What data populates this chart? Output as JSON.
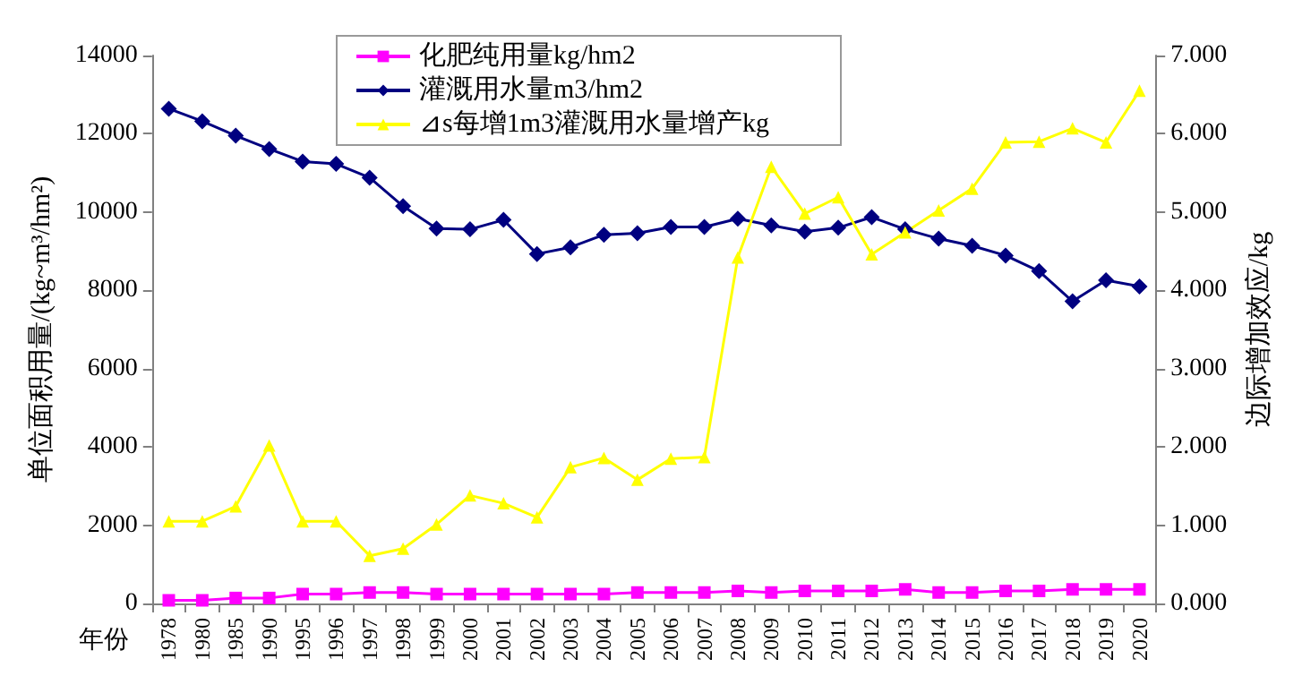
{
  "chart_data": {
    "type": "line",
    "categories": [
      "1978",
      "1980",
      "1985",
      "1990",
      "1995",
      "1996",
      "1997",
      "1998",
      "1999",
      "2000",
      "2001",
      "2002",
      "2003",
      "2004",
      "2005",
      "2006",
      "2007",
      "2008",
      "2009",
      "2010",
      "2011",
      "2012",
      "2013",
      "2014",
      "2015",
      "2016",
      "2017",
      "2018",
      "2019",
      "2020"
    ],
    "series": [
      {
        "name": "化肥纯用量kg/hm2",
        "color": "#ff00ff",
        "marker": "square",
        "values": [
          80,
          80,
          140,
          140,
          240,
          240,
          280,
          280,
          240,
          240,
          240,
          240,
          240,
          240,
          280,
          280,
          280,
          320,
          280,
          320,
          320,
          320,
          360,
          280,
          280,
          320,
          320,
          360,
          360,
          360
        ]
      },
      {
        "name": "灌溉用水量m3/hm2",
        "color": "#000080",
        "marker": "diamond",
        "values": [
          12640,
          12320,
          11950,
          11610,
          11290,
          11230,
          10880,
          10150,
          9580,
          9560,
          9800,
          8930,
          9100,
          9420,
          9460,
          9620,
          9620,
          9830,
          9660,
          9500,
          9600,
          9870,
          9560,
          9320,
          9140,
          8890,
          8490,
          7720,
          8260,
          8100
        ]
      },
      {
        "name": "⊿s每增1m3灌溉用水量增产kg",
        "color": "#ffff00",
        "marker": "triangle",
        "axis": "y2",
        "values": [
          1.05,
          1.05,
          1.24,
          2.02,
          1.05,
          1.05,
          0.61,
          0.7,
          1.01,
          1.38,
          1.28,
          1.1,
          1.74,
          1.86,
          1.58,
          1.85,
          1.87,
          4.42,
          5.58,
          4.98,
          5.19,
          4.46,
          4.74,
          5.02,
          5.3,
          5.89,
          5.9,
          6.07,
          5.89,
          6.55
        ]
      }
    ],
    "ylabel": "单位面积用量/(kg~m³/hm²)",
    "y2label": "边际增加效应/kg",
    "ylim": [
      0,
      14000
    ],
    "yticks": [
      0,
      2000,
      4000,
      6000,
      8000,
      10000,
      12000,
      14000
    ],
    "y2lim": [
      0,
      7
    ],
    "y2ticks": [
      {
        "value": 0,
        "label": "0.000"
      },
      {
        "value": 1,
        "label": "1.000"
      },
      {
        "value": 2,
        "label": "2.000"
      },
      {
        "value": 3,
        "label": "3.000"
      },
      {
        "value": 4,
        "label": "4.000"
      },
      {
        "value": 5,
        "label": "5.000"
      },
      {
        "value": 6,
        "label": "6.000"
      },
      {
        "value": 7,
        "label": "7.000"
      }
    ],
    "annotations": [
      "年份"
    ],
    "grid": false,
    "legend": "top",
    "line_style": "solid"
  }
}
